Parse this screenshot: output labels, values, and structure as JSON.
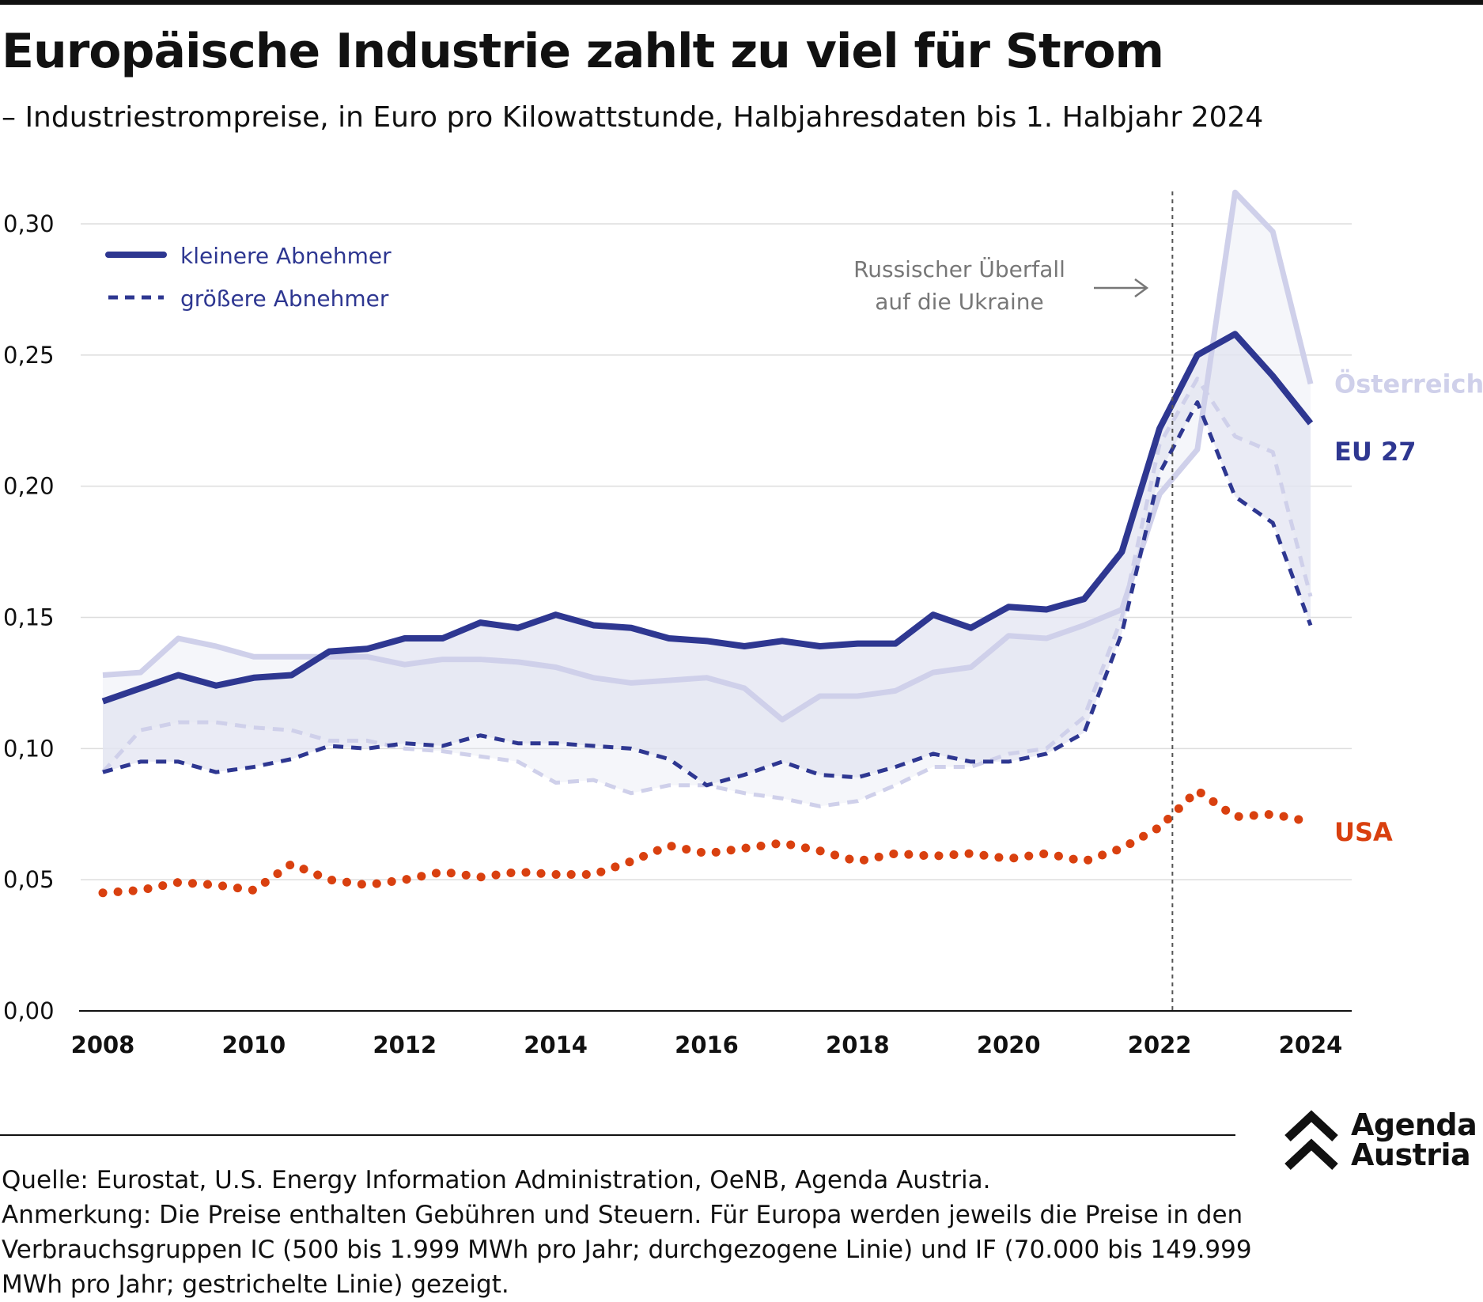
{
  "title": "Europäische Industrie zahlt zu viel für Strom",
  "subtitle": "– Industriestrompreise, in Euro pro Kilowattstunde, Halbjahresdaten bis 1. Halbjahr 2024",
  "source": {
    "line1": "Quelle: Eurostat, U.S. Energy Information Administration, OeNB, Agenda Austria.",
    "line2": "Anmerkung: Die Preise enthalten Gebühren und Steuern. Für Europa werden jeweils die Preise in den Verbrauchsgruppen IC (500 bis 1.999 MWh pro Jahr; durchgezogene Linie) und IF (70.000 bis 149.999 MWh pro Jahr; gestrichelte Linie) gezeigt."
  },
  "logo": {
    "line1": "Agenda",
    "line2": "Austria",
    "icon": "chevron-up-double-icon"
  },
  "colors": {
    "eu": "#2e3791",
    "austria": "#cfd0ea",
    "usa": "#d9400f",
    "band": "#e3e4f1",
    "grid": "#dddddd"
  },
  "chart_data": {
    "type": "line",
    "x_label": "",
    "y_label": "",
    "xlim": [
      2008,
      2024.2
    ],
    "ylim": [
      0,
      0.3
    ],
    "x_ticks": [
      2008,
      2010,
      2012,
      2014,
      2016,
      2018,
      2020,
      2022,
      2024
    ],
    "x_tick_labels": [
      "2008",
      "2010",
      "2012",
      "2014",
      "2016",
      "2018",
      "2020",
      "2022",
      "2024"
    ],
    "y_ticks": [
      0,
      0.05,
      0.1,
      0.15,
      0.2,
      0.25,
      0.3
    ],
    "y_tick_labels": [
      "0,00",
      "0,05",
      "0,10",
      "0,15",
      "0,20",
      "0,25",
      "0,30"
    ],
    "grid": "horizontal",
    "legend_position": "top-left",
    "legend": [
      {
        "label": "kleinere Abnehmer",
        "style": "solid"
      },
      {
        "label": "größere Abnehmer",
        "style": "dashed"
      }
    ],
    "annotation": {
      "x": 2022.17,
      "line1": "Russischer Überfall",
      "line2": "auf die Ukraine"
    },
    "x": [
      2008,
      2008.5,
      2009,
      2009.5,
      2010,
      2010.5,
      2011,
      2011.5,
      2012,
      2012.5,
      2013,
      2013.5,
      2014,
      2014.5,
      2015,
      2015.5,
      2016,
      2016.5,
      2017,
      2017.5,
      2018,
      2018.5,
      2019,
      2019.5,
      2020,
      2020.5,
      2021,
      2021.5,
      2022,
      2022.5,
      2023,
      2023.5,
      2024
    ],
    "series": [
      {
        "name": "Österreich",
        "group": "kleinere Abnehmer",
        "values": [
          0.128,
          0.129,
          0.142,
          0.139,
          0.135,
          0.135,
          0.135,
          0.135,
          0.132,
          0.134,
          0.134,
          0.133,
          0.131,
          0.127,
          0.125,
          0.126,
          0.127,
          0.123,
          0.111,
          0.12,
          0.12,
          0.122,
          0.129,
          0.131,
          0.143,
          0.142,
          0.147,
          0.153,
          0.197,
          0.214,
          0.312,
          0.297,
          0.239
        ]
      },
      {
        "name": "Österreich",
        "group": "größere Abnehmer",
        "values": [
          0.091,
          0.107,
          0.11,
          0.11,
          0.108,
          0.107,
          0.103,
          0.103,
          0.1,
          0.099,
          0.097,
          0.095,
          0.087,
          0.088,
          0.083,
          0.086,
          0.086,
          0.083,
          0.081,
          0.078,
          0.08,
          0.086,
          0.093,
          0.093,
          0.098,
          0.1,
          0.112,
          0.15,
          0.216,
          0.241,
          0.219,
          0.213,
          0.158
        ]
      },
      {
        "name": "EU 27",
        "group": "kleinere Abnehmer",
        "values": [
          0.118,
          0.123,
          0.128,
          0.124,
          0.127,
          0.128,
          0.137,
          0.138,
          0.142,
          0.142,
          0.148,
          0.146,
          0.151,
          0.147,
          0.146,
          0.142,
          0.141,
          0.139,
          0.141,
          0.139,
          0.14,
          0.14,
          0.151,
          0.146,
          0.154,
          0.153,
          0.157,
          0.175,
          0.222,
          0.25,
          0.258,
          0.242,
          0.224
        ]
      },
      {
        "name": "EU 27",
        "group": "größere Abnehmer",
        "values": [
          0.091,
          0.095,
          0.095,
          0.091,
          0.093,
          0.096,
          0.101,
          0.1,
          0.102,
          0.101,
          0.105,
          0.102,
          0.102,
          0.101,
          0.1,
          0.096,
          0.086,
          0.09,
          0.095,
          0.09,
          0.089,
          0.093,
          0.098,
          0.095,
          0.095,
          0.098,
          0.106,
          0.144,
          0.205,
          0.232,
          0.196,
          0.186,
          0.147
        ]
      },
      {
        "name": "USA",
        "values": [
          0.045,
          0.046,
          0.049,
          0.048,
          0.046,
          0.056,
          0.05,
          0.048,
          0.05,
          0.053,
          0.051,
          0.053,
          0.052,
          0.052,
          0.057,
          0.063,
          0.06,
          0.062,
          0.064,
          0.061,
          0.057,
          0.06,
          0.059,
          0.06,
          0.058,
          0.06,
          0.057,
          0.062,
          0.07,
          0.084,
          0.074,
          0.075,
          0.072
        ]
      }
    ]
  }
}
